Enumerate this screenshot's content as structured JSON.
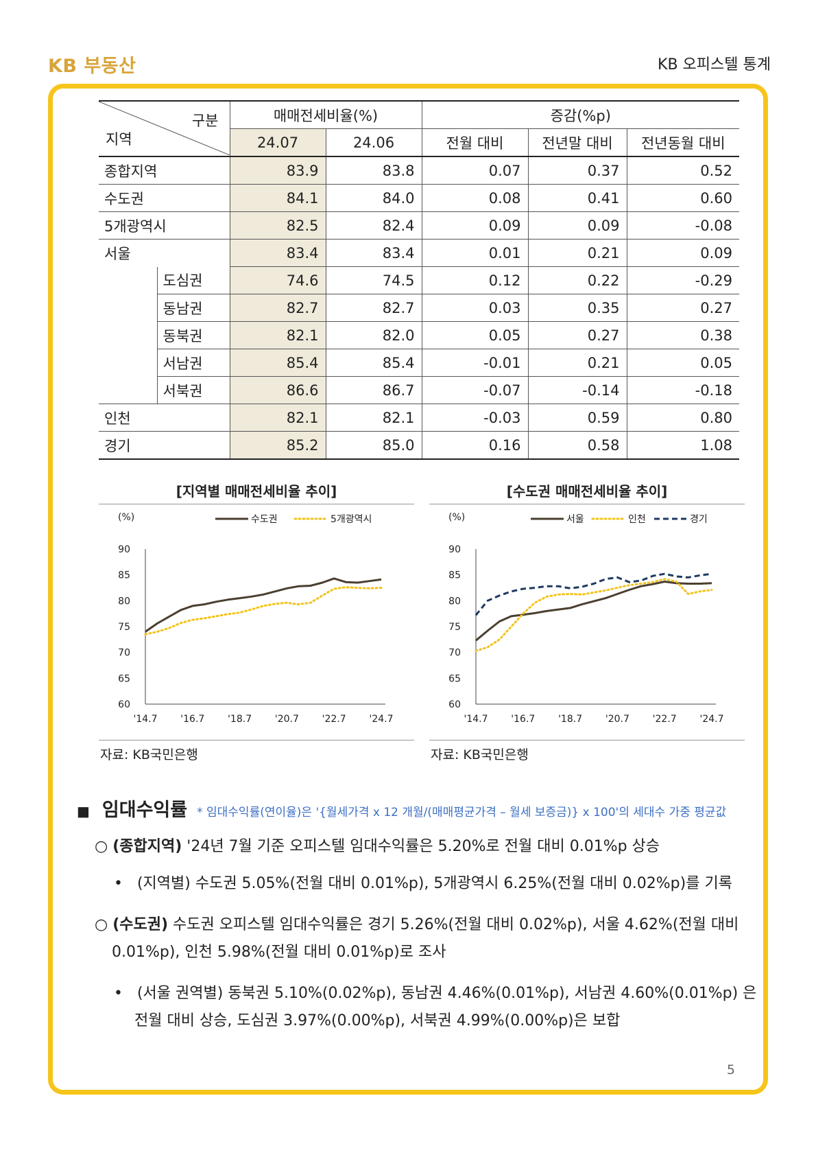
{
  "header": {
    "logo": "KB 부동산",
    "title": "KB 오피스텔 통계"
  },
  "table": {
    "corner_region": "지역",
    "corner_category": "구분",
    "group1": "매매전세비율(%)",
    "group2": "증감(%p)",
    "subheaders": [
      "24.07",
      "24.06",
      "전월 대비",
      "전년말 대비",
      "전년동월 대비"
    ],
    "rows": [
      {
        "region": "종합지역",
        "sub": "",
        "values": [
          "83.9",
          "83.8",
          "0.07",
          "0.37",
          "0.52"
        ]
      },
      {
        "region": "수도권",
        "sub": "",
        "values": [
          "84.1",
          "84.0",
          "0.08",
          "0.41",
          "0.60"
        ]
      },
      {
        "region": "5개광역시",
        "sub": "",
        "values": [
          "82.5",
          "82.4",
          "0.09",
          "0.09",
          "-0.08"
        ]
      },
      {
        "region": "서울",
        "sub": "",
        "values": [
          "83.4",
          "83.4",
          "0.01",
          "0.21",
          "0.09"
        ]
      },
      {
        "region": "",
        "sub": "도심권",
        "values": [
          "74.6",
          "74.5",
          "0.12",
          "0.22",
          "-0.29"
        ]
      },
      {
        "region": "",
        "sub": "동남권",
        "values": [
          "82.7",
          "82.7",
          "0.03",
          "0.35",
          "0.27"
        ]
      },
      {
        "region": "",
        "sub": "동북권",
        "values": [
          "82.1",
          "82.0",
          "0.05",
          "0.27",
          "0.38"
        ]
      },
      {
        "region": "",
        "sub": "서남권",
        "values": [
          "85.4",
          "85.4",
          "-0.01",
          "0.21",
          "0.05"
        ]
      },
      {
        "region": "",
        "sub": "서북권",
        "values": [
          "86.6",
          "86.7",
          "-0.07",
          "-0.14",
          "-0.18"
        ]
      },
      {
        "region": "인천",
        "sub": "",
        "values": [
          "82.1",
          "82.1",
          "-0.03",
          "0.59",
          "0.80"
        ]
      },
      {
        "region": "경기",
        "sub": "",
        "values": [
          "85.2",
          "85.0",
          "0.16",
          "0.58",
          "1.08"
        ]
      }
    ]
  },
  "chart_data": [
    {
      "type": "line",
      "title": "[지역별 매매전세비율 추이]",
      "ylabel": "(%)",
      "ylim": [
        60,
        90
      ],
      "yticks": [
        "90",
        "85",
        "80",
        "75",
        "70",
        "65",
        "60"
      ],
      "xticks": [
        "'14.7",
        "'16.7",
        "'18.7",
        "'20.7",
        "'22.7",
        "'24.7"
      ],
      "legend": "top-right",
      "source": "자료: KB국민은행",
      "x": [
        "'14.7",
        "'15.1",
        "'15.7",
        "'16.1",
        "'16.7",
        "'17.1",
        "'17.7",
        "'18.1",
        "'18.7",
        "'19.1",
        "'19.7",
        "'20.1",
        "'20.7",
        "'21.1",
        "'21.7",
        "'22.1",
        "'22.7",
        "'23.1",
        "'23.7",
        "'24.1",
        "'24.7"
      ],
      "series": [
        {
          "name": "수도권",
          "color": "#4a3f2f",
          "style": "solid",
          "values": [
            74.0,
            75.6,
            76.9,
            78.2,
            79.0,
            79.3,
            79.8,
            80.2,
            80.5,
            80.8,
            81.2,
            81.8,
            82.4,
            82.8,
            82.9,
            83.5,
            84.3,
            83.6,
            83.5,
            83.8,
            84.1
          ]
        },
        {
          "name": "5개광역시",
          "color": "#f2c31c",
          "style": "dotted",
          "values": [
            73.5,
            74.0,
            74.7,
            75.7,
            76.3,
            76.6,
            77.0,
            77.4,
            77.7,
            78.3,
            79.0,
            79.4,
            79.6,
            79.3,
            79.6,
            81.0,
            82.3,
            82.6,
            82.5,
            82.4,
            82.5
          ]
        }
      ]
    },
    {
      "type": "line",
      "title": "[수도권 매매전세비율 추이]",
      "ylabel": "(%)",
      "ylim": [
        60,
        90
      ],
      "yticks": [
        "90",
        "85",
        "80",
        "75",
        "70",
        "65",
        "60"
      ],
      "xticks": [
        "'14.7",
        "'16.7",
        "'18.7",
        "'20.7",
        "'22.7",
        "'24.7"
      ],
      "legend": "top-right",
      "source": "자료: KB국민은행",
      "x": [
        "'14.7",
        "'15.1",
        "'15.7",
        "'16.1",
        "'16.7",
        "'17.1",
        "'17.7",
        "'18.1",
        "'18.7",
        "'19.1",
        "'19.7",
        "'20.1",
        "'20.7",
        "'21.1",
        "'21.7",
        "'22.1",
        "'22.7",
        "'23.1",
        "'23.7",
        "'24.1",
        "'24.7"
      ],
      "series": [
        {
          "name": "서울",
          "color": "#4a3f2f",
          "style": "solid",
          "values": [
            72.3,
            74.2,
            76.0,
            77.0,
            77.3,
            77.6,
            78.0,
            78.3,
            78.6,
            79.3,
            79.9,
            80.5,
            81.3,
            82.1,
            82.8,
            83.2,
            83.7,
            83.4,
            83.3,
            83.3,
            83.4
          ]
        },
        {
          "name": "인천",
          "color": "#f2c31c",
          "style": "dotted",
          "values": [
            70.3,
            71.0,
            72.5,
            75.0,
            77.5,
            79.6,
            80.8,
            81.2,
            81.3,
            81.2,
            81.6,
            82.0,
            82.5,
            83.0,
            83.3,
            83.6,
            84.2,
            83.7,
            81.3,
            81.8,
            82.1
          ]
        },
        {
          "name": "경기",
          "color": "#1f3a63",
          "style": "dashed",
          "values": [
            77.2,
            80.0,
            81.0,
            81.8,
            82.3,
            82.5,
            82.8,
            82.8,
            82.4,
            82.7,
            83.3,
            84.2,
            84.5,
            83.6,
            83.9,
            84.8,
            85.2,
            84.7,
            84.5,
            84.9,
            85.2
          ]
        }
      ]
    }
  ],
  "section": {
    "bullet": "■",
    "title": "임대수익률",
    "note": "* 임대수익률(연이율)은 '{월세가격 x 12 개월/(매매평균가격 – 월세 보증금)} x 100'의 세대수 가중 평균값"
  },
  "paragraphs": {
    "p1_label": "(종합지역)",
    "p1_text": " '24년 7월 기준 오피스텔 임대수익률은 5.20%로 전월 대비 0.01%p 상승",
    "p1_sub": "(지역별) 수도권 5.05%(전월 대비 0.01%p), 5개광역시 6.25%(전월 대비 0.02%p)를 기록",
    "p2_label": "(수도권)",
    "p2_text": " 수도권 오피스텔 임대수익률은 경기 5.26%(전월 대비 0.02%p), 서울 4.62%(전월 대비 0.01%p), 인천 5.98%(전월 대비 0.01%p)로 조사",
    "p2_sub": "(서울 권역별) 동북권 5.10%(0.02%p), 동남권 4.46%(0.01%p), 서남권 4.60%(0.01%p) 은 전월 대비 상승, 도심권 3.97%(0.00%p), 서북권 4.99%(0.00%p)은 보합"
  },
  "page_number": "5"
}
